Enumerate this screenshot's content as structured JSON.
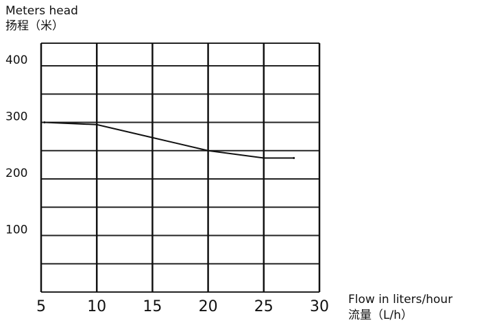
{
  "chart_data": {
    "type": "line",
    "ylabel": "Meters head",
    "ylabel_cn": "扬程（米）",
    "xlabel": "Flow in liters/hour",
    "xlabel_cn": "流量（L/h）",
    "xlim": [
      5,
      30
    ],
    "ylim": [
      0,
      440
    ],
    "x_ticks": [
      5,
      10,
      15,
      20,
      25,
      30
    ],
    "y_ticks": [
      100,
      200,
      300,
      400
    ],
    "y_gridlines": [
      0,
      50,
      100,
      150,
      200,
      250,
      300,
      350,
      400,
      440
    ],
    "grid": true,
    "line_color": "#111111",
    "series": [
      {
        "x": [
          5.3,
          10,
          15,
          20,
          25,
          27.7
        ],
        "y": [
          300,
          296,
          273,
          250,
          237,
          237
        ]
      }
    ]
  }
}
